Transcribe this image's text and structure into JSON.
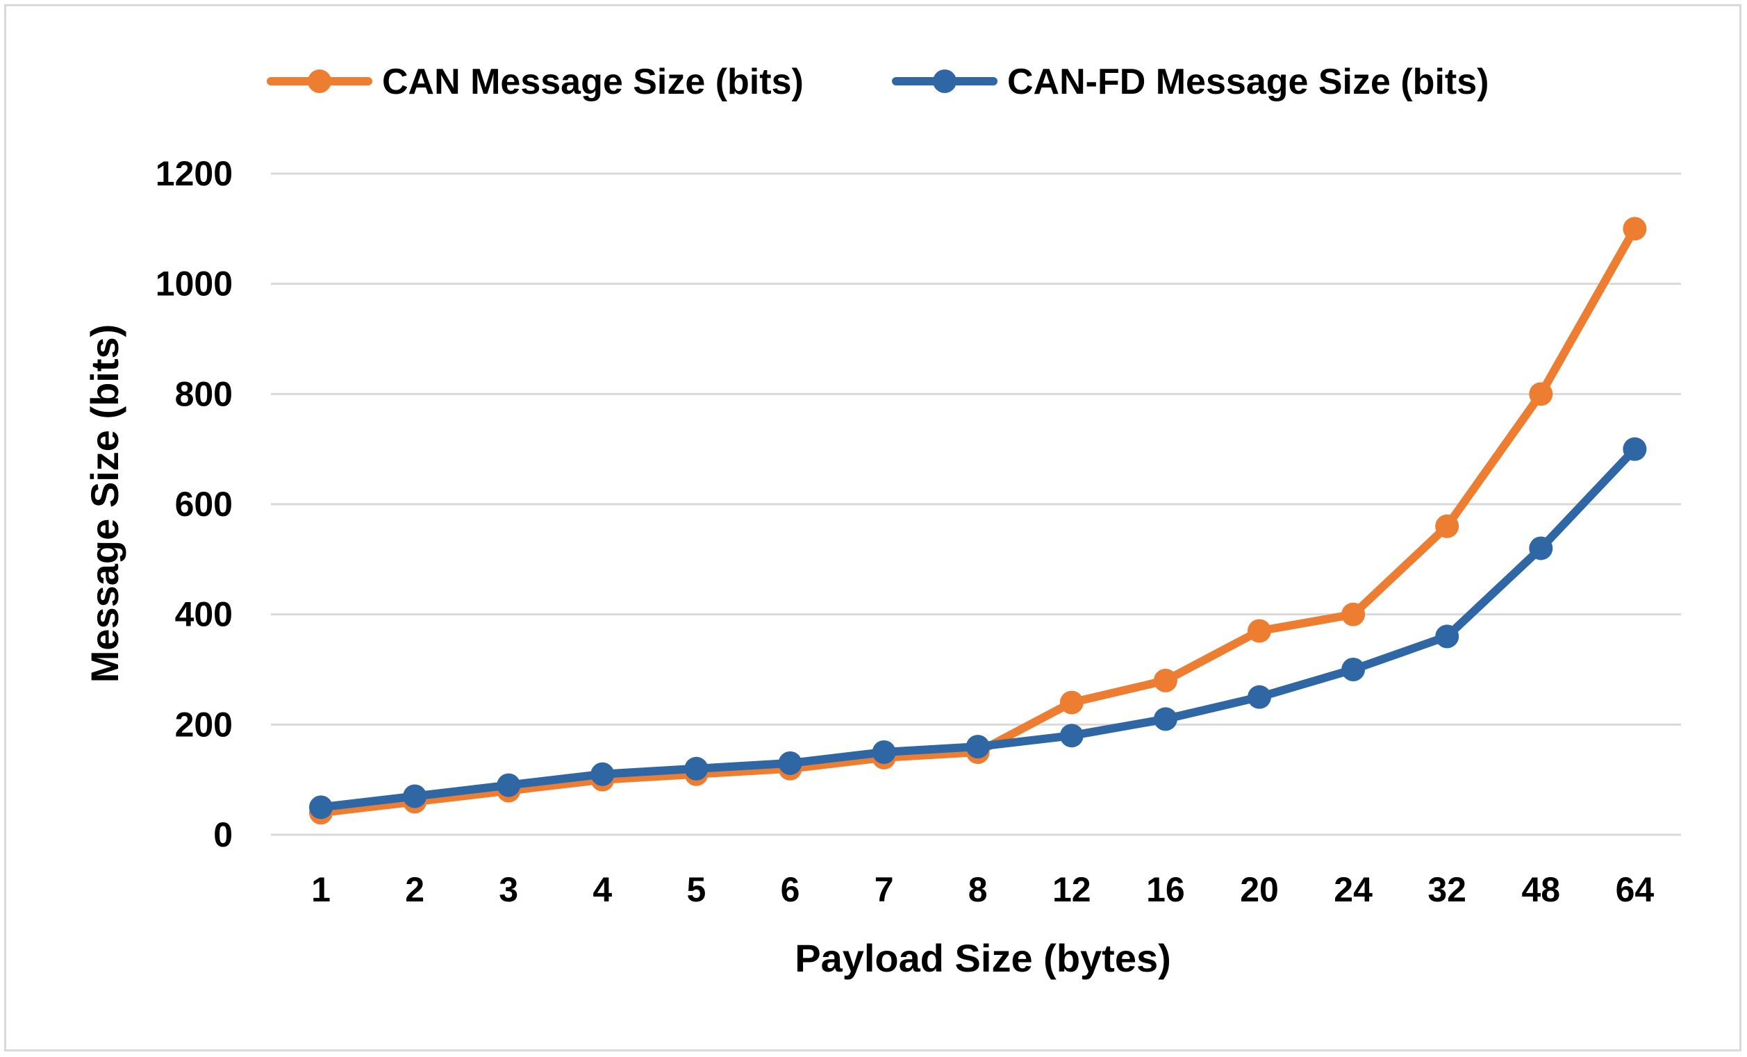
{
  "chart_data": {
    "type": "line",
    "categories": [
      "1",
      "2",
      "3",
      "4",
      "5",
      "6",
      "7",
      "8",
      "12",
      "16",
      "20",
      "24",
      "32",
      "48",
      "64"
    ],
    "series": [
      {
        "name": "CAN Message Size (bits)",
        "color": "#ED7D31",
        "values": [
          40,
          60,
          80,
          100,
          110,
          120,
          140,
          150,
          240,
          280,
          370,
          400,
          560,
          800,
          1100
        ]
      },
      {
        "name": "CAN-FD Message Size (bits)",
        "color": "#2E67A4",
        "values": [
          50,
          70,
          90,
          110,
          120,
          130,
          150,
          160,
          180,
          210,
          250,
          300,
          360,
          520,
          700
        ]
      }
    ],
    "title": "",
    "xlabel": "Payload Size (bytes)",
    "ylabel": "Message Size (bits)",
    "ylim": [
      0,
      1200
    ],
    "yticks": [
      "0",
      "200",
      "400",
      "600",
      "800",
      "1000",
      "1200"
    ],
    "grid": true,
    "legend": "top"
  }
}
